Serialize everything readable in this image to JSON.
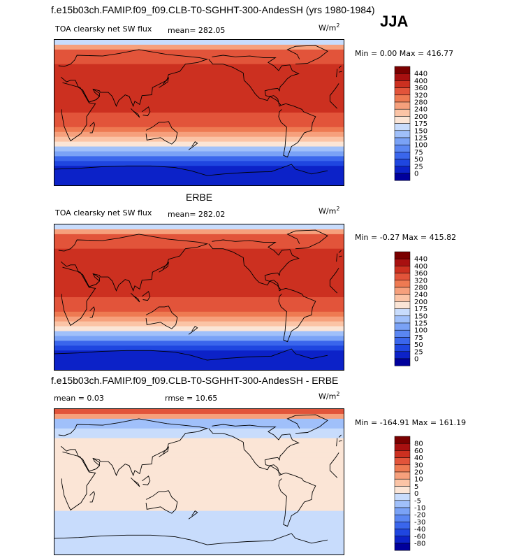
{
  "header": {
    "title": "f.e15b03ch.FAMIP.f09_f09.CLB-T0-SGHHT-300-AndesSH (yrs 1980-1984)",
    "season": "JJA"
  },
  "panels": [
    {
      "variable": "TOA clearsky net SW flux",
      "mean_text": "mean= 282.05",
      "units_base": "W/m",
      "units_exp": "2",
      "minmax_text": "Min =    0.00 Max = 416.77"
    },
    {
      "caption": "ERBE",
      "variable": "TOA clearsky net SW flux",
      "mean_text": "mean= 282.02",
      "units_base": "W/m",
      "units_exp": "2",
      "minmax_text": "Min =  -0.27 Max = 415.82"
    },
    {
      "caption": "f.e15b03ch.FAMIP.f09_f09.CLB-T0-SGHHT-300-AndesSH - ERBE",
      "mean_text": "mean =    0.03",
      "rmse_text": "rmse =   10.65",
      "units_base": "W/m",
      "units_exp": "2",
      "minmax_text": "Min = -164.91 Max = 161.19"
    }
  ],
  "chart_data": [
    {
      "type": "heatmap",
      "title": "TOA clearsky net SW flux",
      "levels": [
        "0",
        "25",
        "50",
        "75",
        "100",
        "125",
        "150",
        "175",
        "200",
        "240",
        "280",
        "320",
        "360",
        "400",
        "440"
      ],
      "colors": [
        "#00009c",
        "#0c22c8",
        "#1f46e0",
        "#3a66ec",
        "#5a86f2",
        "#7aa2f6",
        "#a0c0fa",
        "#c8dcfc",
        "#fbe5d6",
        "#fbc4a6",
        "#f6a07c",
        "#ee7a52",
        "#e2543a",
        "#cc3020",
        "#a81010",
        "#7a0000"
      ],
      "zonal_profile": [
        {
          "lat": 90,
          "value": 130
        },
        {
          "lat": 75,
          "value": 330
        },
        {
          "lat": 60,
          "value": 360
        },
        {
          "lat": 45,
          "value": 390
        },
        {
          "lat": 30,
          "value": 400
        },
        {
          "lat": 15,
          "value": 385
        },
        {
          "lat": 0,
          "value": 360
        },
        {
          "lat": -15,
          "value": 325
        },
        {
          "lat": -30,
          "value": 245
        },
        {
          "lat": -45,
          "value": 140
        },
        {
          "lat": -60,
          "value": 50
        },
        {
          "lat": -75,
          "value": 5
        },
        {
          "lat": -90,
          "value": 0
        }
      ],
      "min": 0.0,
      "max": 416.77,
      "mean": 282.05
    },
    {
      "type": "heatmap",
      "title": "TOA clearsky net SW flux",
      "levels": [
        "0",
        "25",
        "50",
        "75",
        "100",
        "125",
        "150",
        "175",
        "200",
        "240",
        "280",
        "320",
        "360",
        "400",
        "440"
      ],
      "colors": [
        "#00009c",
        "#0c22c8",
        "#1f46e0",
        "#3a66ec",
        "#5a86f2",
        "#7aa2f6",
        "#a0c0fa",
        "#c8dcfc",
        "#fbe5d6",
        "#fbc4a6",
        "#f6a07c",
        "#ee7a52",
        "#e2543a",
        "#cc3020",
        "#a81010",
        "#7a0000"
      ],
      "zonal_profile": [
        {
          "lat": 90,
          "value": 130
        },
        {
          "lat": 75,
          "value": 330
        },
        {
          "lat": 60,
          "value": 360
        },
        {
          "lat": 45,
          "value": 390
        },
        {
          "lat": 30,
          "value": 400
        },
        {
          "lat": 15,
          "value": 385
        },
        {
          "lat": 0,
          "value": 360
        },
        {
          "lat": -15,
          "value": 325
        },
        {
          "lat": -30,
          "value": 245
        },
        {
          "lat": -45,
          "value": 140
        },
        {
          "lat": -60,
          "value": 50
        },
        {
          "lat": -75,
          "value": 5
        },
        {
          "lat": -90,
          "value": 0
        }
      ],
      "min": -0.27,
      "max": 415.82,
      "mean": 282.02
    },
    {
      "type": "heatmap",
      "title": "f.e15b03ch.FAMIP.f09_f09.CLB-T0-SGHHT-300-AndesSH - ERBE",
      "levels": [
        "-80",
        "-60",
        "-40",
        "-30",
        "-20",
        "-10",
        "-5",
        "0",
        "5",
        "10",
        "20",
        "30",
        "40",
        "60",
        "80"
      ],
      "colors": [
        "#00009c",
        "#0c22c8",
        "#1f46e0",
        "#3a66ec",
        "#5a86f2",
        "#7aa2f6",
        "#a0c0fa",
        "#c8dcfc",
        "#fbe5d6",
        "#fbc4a6",
        "#f6a07c",
        "#ee7a52",
        "#e2543a",
        "#cc3020",
        "#a81010",
        "#7a0000"
      ],
      "zonal_profile": [
        {
          "lat": 90,
          "value": 40
        },
        {
          "lat": 75,
          "value": -10
        },
        {
          "lat": 60,
          "value": -3
        },
        {
          "lat": 45,
          "value": 2
        },
        {
          "lat": 30,
          "value": 3
        },
        {
          "lat": 15,
          "value": 2
        },
        {
          "lat": 0,
          "value": 3
        },
        {
          "lat": -15,
          "value": 2
        },
        {
          "lat": -30,
          "value": 1
        },
        {
          "lat": -45,
          "value": -3
        },
        {
          "lat": -60,
          "value": -4
        },
        {
          "lat": -75,
          "value": -2
        },
        {
          "lat": -90,
          "value": -1
        }
      ],
      "min": -164.91,
      "max": 161.19,
      "mean": 0.03,
      "rmse": 10.65
    }
  ]
}
